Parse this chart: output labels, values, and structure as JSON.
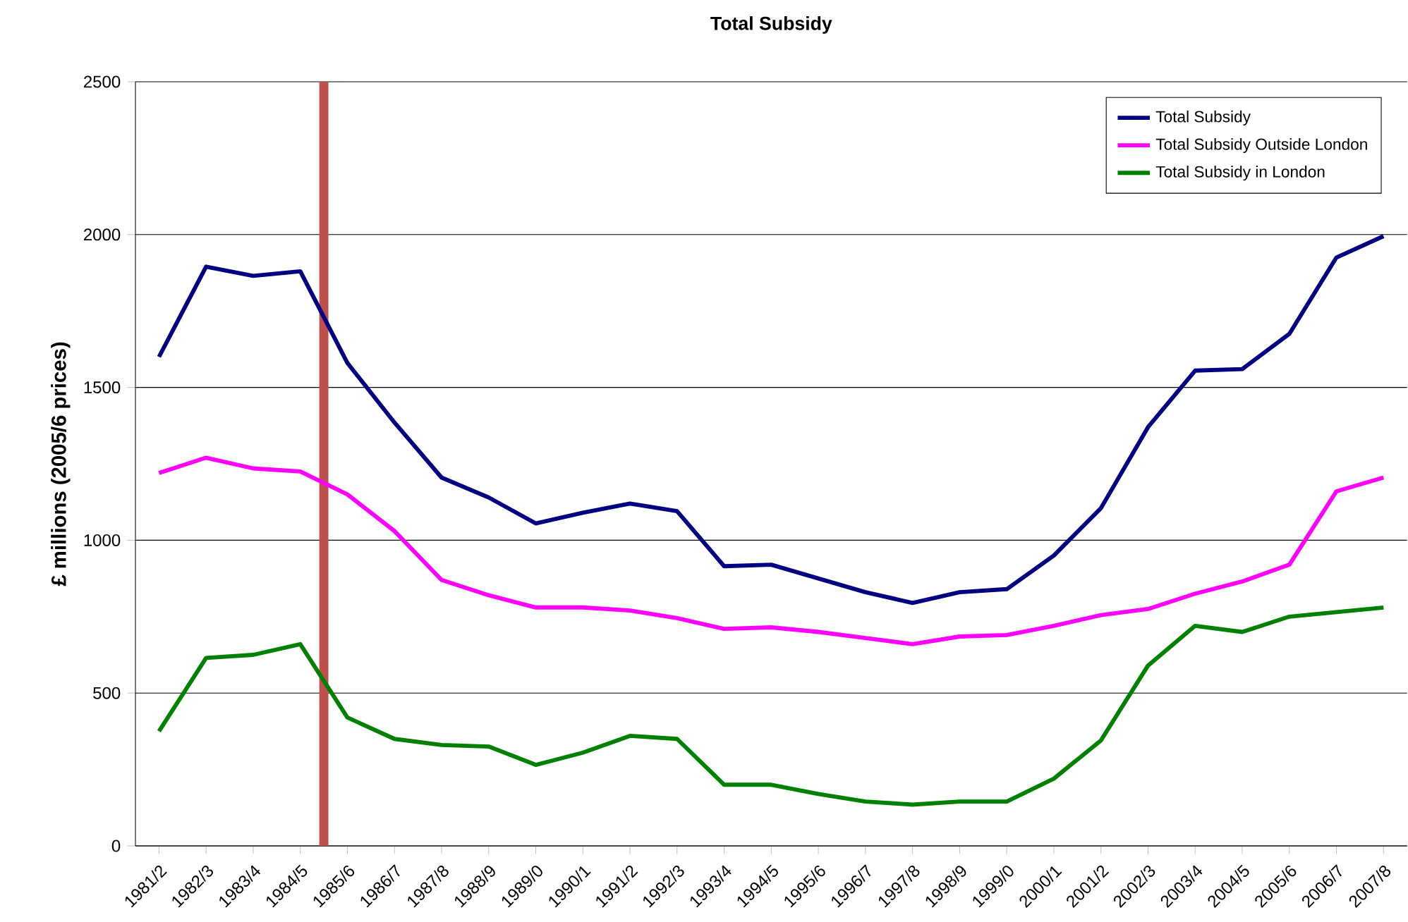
{
  "chart_data": {
    "type": "line",
    "title": "Total Subsidy",
    "ylabel": "£ millions (2005/6 prices)",
    "categories": [
      "1981/2",
      "1982/3",
      "1983/4",
      "1984/5",
      "1985/6",
      "1986/7",
      "1987/8",
      "1988/9",
      "1989/0",
      "1990/1",
      "1991/2",
      "1992/3",
      "1993/4",
      "1994/5",
      "1995/6",
      "1996/7",
      "1997/8",
      "1998/9",
      "1999/0",
      "2000/1",
      "2001/2",
      "2002/3",
      "2003/4",
      "2004/5",
      "2005/6",
      "2006/7",
      "2007/8"
    ],
    "series": [
      {
        "name": "Total Subsidy",
        "color": "#000080",
        "values": [
          1600,
          1895,
          1865,
          1880,
          1580,
          1385,
          1205,
          1140,
          1055,
          1090,
          1120,
          1095,
          915,
          920,
          875,
          830,
          795,
          830,
          840,
          950,
          1105,
          1370,
          1555,
          1560,
          1675,
          1925,
          1995
        ]
      },
      {
        "name": "Total  Subsidy Outside London",
        "color": "#ff00ff",
        "values": [
          1220,
          1270,
          1235,
          1225,
          1150,
          1030,
          870,
          820,
          780,
          780,
          770,
          745,
          710,
          715,
          700,
          680,
          660,
          685,
          690,
          720,
          755,
          775,
          825,
          865,
          920,
          1160,
          1205
        ]
      },
      {
        "name": "Total  Subsidy in London",
        "color": "#008000",
        "values": [
          375,
          615,
          625,
          660,
          420,
          350,
          330,
          325,
          265,
          305,
          360,
          350,
          200,
          200,
          170,
          145,
          135,
          145,
          145,
          220,
          345,
          590,
          720,
          700,
          750,
          765,
          780
        ]
      }
    ],
    "ylim": [
      0,
      2500
    ],
    "yticks": [
      0,
      500,
      1000,
      1500,
      2000,
      2500
    ],
    "grid": "y",
    "legend": "top right",
    "marker": "none",
    "line_style": "solid",
    "ref_lines": [
      {
        "axis": "x",
        "value": "1985/6",
        "color": "#c0504d"
      }
    ]
  }
}
